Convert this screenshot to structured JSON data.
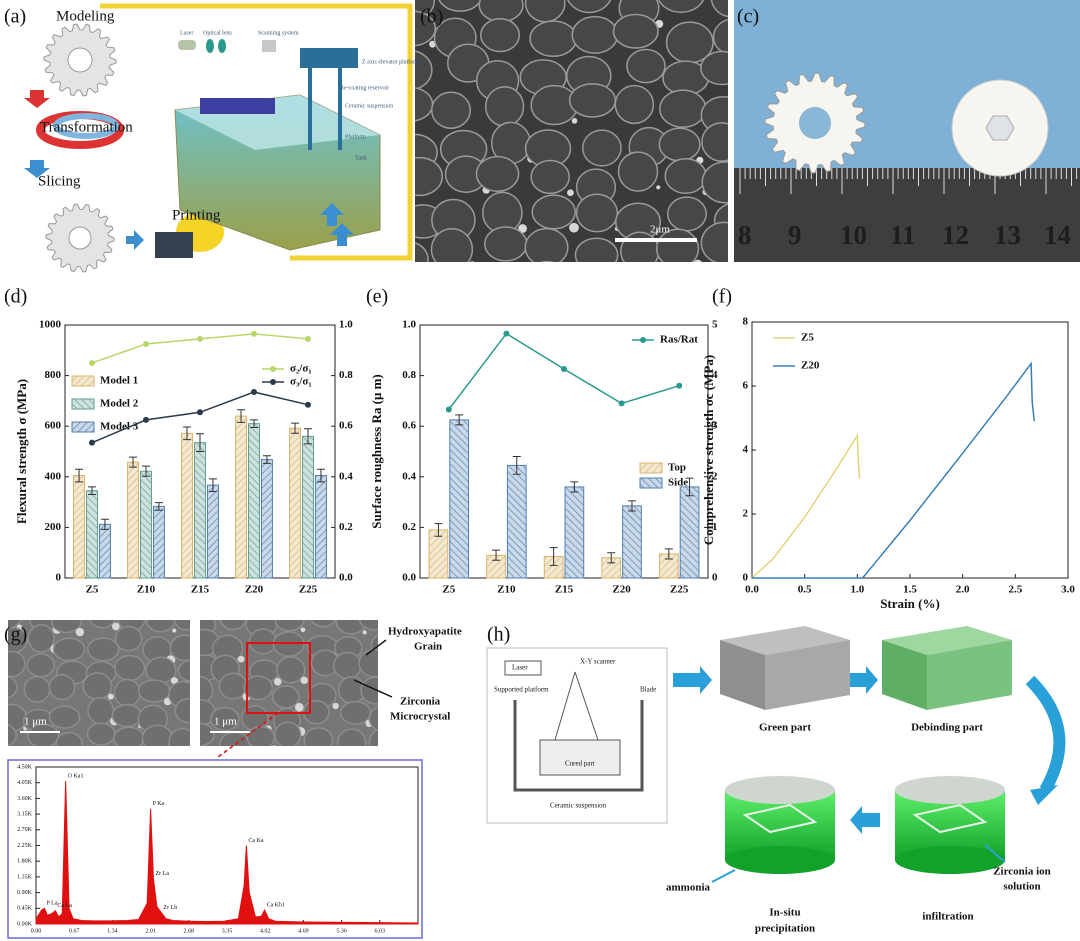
{
  "figure": {
    "panel_labels": [
      "(a)",
      "(b)",
      "(c)",
      "(d)",
      "(e)",
      "(f)",
      "(g)",
      "(h)"
    ],
    "a": {
      "steps": [
        "Modeling",
        "Transformation",
        "Slicing",
        "Printing"
      ],
      "parts": [
        "Laser",
        "Optical lens",
        "Scanning system",
        "Z axis elevator platform",
        "Re-coating reservoir",
        "Ceramic suspension",
        "Platform",
        "Tank"
      ]
    },
    "b": {
      "scale": "2μm"
    },
    "c": {
      "ruler": [
        "8",
        "9",
        "10",
        "11",
        "12",
        "13",
        "14"
      ]
    },
    "g": {
      "scales": [
        "1 μm",
        "1 μm"
      ],
      "grain_label": [
        "Hydroxyapatite",
        "Grain"
      ],
      "crystal_label": [
        "Zirconia",
        "Microcrystal"
      ]
    },
    "h": {
      "schematic": [
        "Laser",
        "X-Y scanner",
        "Supported platform",
        "Blade",
        "Cured part",
        "Ceramic suspension"
      ],
      "steps": [
        "Green part",
        "Debinding part",
        "infiltration"
      ],
      "precipitation_label": [
        "In-situ",
        "precipitation"
      ],
      "solution_label": [
        "Zirconia ion",
        "solution"
      ],
      "ammonia_label": "ammonia"
    }
  },
  "chart_data": [
    {
      "type": "bar",
      "y_label": "Flexural strength σ (MPa)",
      "categories": [
        "Z5",
        "Z10",
        "Z15",
        "Z20",
        "Z25"
      ],
      "series": [
        {
          "name": "Model 1",
          "color": "#d9b46a",
          "values": [
            405,
            458,
            572,
            640,
            592
          ],
          "errors": [
            25,
            20,
            25,
            25,
            20
          ]
        },
        {
          "name": "Model 2",
          "color": "#5f9e92",
          "values": [
            345,
            422,
            535,
            610,
            560
          ],
          "errors": [
            15,
            20,
            35,
            15,
            30
          ]
        },
        {
          "name": "Model 3",
          "color": "#4f7fb0",
          "values": [
            212,
            283,
            367,
            468,
            405
          ],
          "errors": [
            20,
            15,
            25,
            15,
            25
          ]
        },
        {
          "name": "σ₂/σ₁",
          "type": "line",
          "axis": "y2",
          "color": "#b9d66a",
          "values": [
            0.85,
            0.925,
            0.945,
            0.965,
            0.945
          ]
        },
        {
          "name": "σ₃/σ₁",
          "type": "line",
          "axis": "y2",
          "color": "#2b3a4a",
          "values": [
            0.535,
            0.625,
            0.655,
            0.735,
            0.685
          ]
        }
      ],
      "ylim": [
        0,
        1000
      ],
      "yticks": [
        0,
        200,
        400,
        600,
        800,
        1000
      ],
      "y2lim": [
        0,
        1
      ],
      "y2ticks": [
        {
          "value": 0,
          "label": "0.0"
        },
        0.2,
        0.4,
        0.6,
        0.8,
        {
          "value": 1,
          "label": "1.0"
        }
      ]
    },
    {
      "type": "bar",
      "y_label": "Surface roughness Ra (μ m)",
      "categories": [
        "Z5",
        "Z10",
        "Z15",
        "Z20",
        "Z25"
      ],
      "series": [
        {
          "name": "Top",
          "color": "#d9b46a",
          "values": [
            0.19,
            0.09,
            0.085,
            0.08,
            0.095
          ],
          "errors": [
            0.025,
            0.02,
            0.035,
            0.02,
            0.02
          ]
        },
        {
          "name": "Side",
          "color": "#4f7fb0",
          "values": [
            0.625,
            0.445,
            0.36,
            0.285,
            0.36
          ],
          "errors": [
            0.02,
            0.035,
            0.02,
            0.02,
            0.035
          ]
        },
        {
          "name": "Ras/Rat",
          "type": "line",
          "axis": "y2",
          "color": "#2a9a8e",
          "values": [
            3.33,
            4.83,
            4.13,
            3.45,
            3.8
          ]
        }
      ],
      "ylim": [
        0,
        1
      ],
      "yticks": [
        {
          "value": 0,
          "label": "0.0"
        },
        0.2,
        0.4,
        0.6,
        0.8,
        {
          "value": 1,
          "label": "1.0"
        }
      ],
      "y2lim": [
        0,
        5
      ],
      "y2ticks": [
        0,
        1,
        2,
        3,
        4,
        5
      ]
    },
    {
      "type": "line",
      "x_label": "Strain (%)",
      "y_label": "Comprehensive strength σc (MPa)",
      "series": [
        {
          "name": "Z5",
          "color": "#e2d47a",
          "x": [
            0,
            0.2,
            0.5,
            0.8,
            1.0,
            1.01,
            1.02
          ],
          "values": [
            0,
            0.6,
            1.9,
            3.4,
            4.45,
            3.6,
            3.1
          ]
        },
        {
          "name": "Z20",
          "color": "#3a7fb8",
          "x": [
            0,
            1.05,
            1.2,
            1.5,
            2.0,
            2.4,
            2.65,
            2.66,
            2.68
          ],
          "values": [
            0,
            0,
            0.6,
            1.8,
            3.9,
            5.6,
            6.7,
            5.5,
            4.9
          ]
        }
      ],
      "xlim": [
        0,
        3
      ],
      "xticks": [
        {
          "value": 0,
          "label": "0.0"
        },
        0.5,
        {
          "value": 1,
          "label": "1.0"
        },
        1.5,
        {
          "value": 2,
          "label": "2.0"
        },
        2.5,
        {
          "value": 3,
          "label": "3.0"
        }
      ],
      "ylim": [
        0,
        8
      ],
      "yticks": [
        0,
        2,
        4,
        6,
        8
      ]
    },
    {
      "type": "area",
      "color": "#e01010",
      "x": [
        0,
        0.1,
        0.15,
        0.2,
        0.28,
        0.34,
        0.4,
        0.46,
        0.52,
        0.58,
        0.65,
        0.8,
        1.0,
        1.3,
        1.6,
        1.8,
        1.95,
        2.01,
        2.06,
        2.12,
        2.2,
        2.28,
        2.4,
        2.7,
        3.0,
        3.3,
        3.55,
        3.65,
        3.69,
        3.74,
        3.85,
        3.95,
        4.01,
        4.08,
        4.2,
        4.6,
        5.2,
        6.0,
        6.7
      ],
      "values": [
        150,
        400,
        450,
        250,
        300,
        380,
        200,
        300,
        4100,
        450,
        150,
        100,
        90,
        90,
        100,
        130,
        600,
        3300,
        1300,
        500,
        320,
        150,
        100,
        80,
        70,
        80,
        150,
        1100,
        2250,
        900,
        200,
        220,
        400,
        150,
        80,
        60,
        50,
        40,
        30
      ],
      "annotations": [
        {
          "text": "P La",
          "x": 0.15,
          "y": 450
        },
        {
          "text": "O Ka1",
          "x": 0.52,
          "y": 4100
        },
        {
          "text": "Ca La",
          "x": 0.34,
          "y": 380
        },
        {
          "text": "P Ka",
          "x": 2.01,
          "y": 3300
        },
        {
          "text": "Zr La",
          "x": 2.06,
          "y": 1300
        },
        {
          "text": "Zr Lb",
          "x": 2.2,
          "y": 320
        },
        {
          "text": "Ca Ka",
          "x": 3.69,
          "y": 2250
        },
        {
          "text": "Ca Kb1",
          "x": 4.01,
          "y": 400
        }
      ],
      "xlim": [
        0,
        6.7
      ],
      "xticks": [
        {
          "value": 0,
          "label": "0.00"
        },
        0.67,
        1.34,
        2.01,
        2.68,
        3.35,
        4.02,
        4.69,
        5.36,
        6.03
      ],
      "ylim": [
        0,
        4500
      ],
      "yticks": [
        {
          "value": 0,
          "label": "0.00K"
        },
        {
          "value": 450,
          "label": "0.45K"
        },
        {
          "value": 900,
          "label": "0.90K"
        },
        {
          "value": 1350,
          "label": "1.35K"
        },
        {
          "value": 1800,
          "label": "1.80K"
        },
        {
          "value": 2250,
          "label": "2.25K"
        },
        {
          "value": 2700,
          "label": "2.70K"
        },
        {
          "value": 3150,
          "label": "3.15K"
        },
        {
          "value": 3600,
          "label": "3.60K"
        },
        {
          "value": 4050,
          "label": "4.05K"
        },
        {
          "value": 4500,
          "label": "4.50K"
        }
      ]
    }
  ]
}
